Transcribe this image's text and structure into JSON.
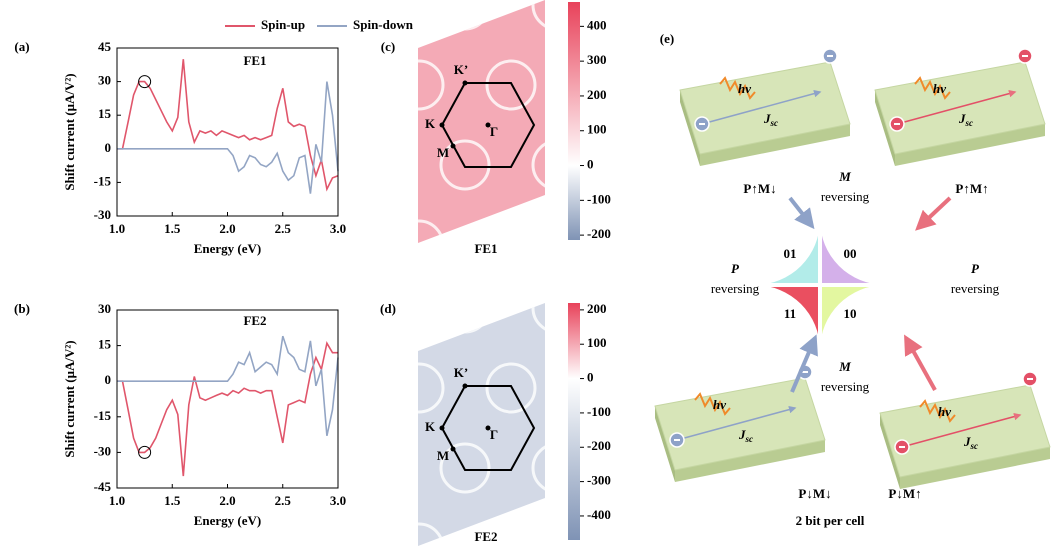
{
  "chart_data": [
    {
      "type": "line",
      "panel": "(a)",
      "title": "FE1",
      "xlabel": "Energy (eV)",
      "ylabel": "Shift current  (μA/V²)",
      "x": [
        1.0,
        1.05,
        1.1,
        1.15,
        1.2,
        1.25,
        1.3,
        1.35,
        1.4,
        1.45,
        1.5,
        1.55,
        1.6,
        1.65,
        1.7,
        1.75,
        1.8,
        1.85,
        1.9,
        1.95,
        2.0,
        2.05,
        2.1,
        2.15,
        2.2,
        2.25,
        2.3,
        2.35,
        2.4,
        2.45,
        2.5,
        2.55,
        2.6,
        2.65,
        2.7,
        2.75,
        2.8,
        2.85,
        2.9,
        2.95,
        3.0
      ],
      "xlim": [
        1,
        3
      ],
      "xticks": [
        {
          "value": 1,
          "label": "1.0"
        },
        1.5,
        {
          "value": 2,
          "label": "2.0"
        },
        2.5,
        {
          "value": 3,
          "label": "3.0"
        }
      ],
      "ylim": [
        -30,
        45
      ],
      "yticks": [
        -30,
        -15,
        0,
        15,
        30,
        45
      ],
      "legend": true,
      "series": [
        {
          "name": "Spin-up",
          "color": "#e0566b",
          "values": [
            0,
            0,
            12,
            24,
            30,
            30,
            27,
            22,
            17,
            12,
            8,
            14,
            40,
            12,
            3,
            8,
            7,
            8,
            6,
            8,
            7,
            6,
            5,
            6,
            4,
            5,
            4,
            5,
            6,
            18,
            27,
            12,
            10,
            11,
            10,
            -3,
            -12,
            -5,
            -18,
            -13,
            -12
          ]
        },
        {
          "name": "Spin-down",
          "color": "#93a5c4",
          "values": [
            0,
            0,
            0,
            0,
            0,
            0,
            0,
            0,
            0,
            0,
            0,
            0,
            0,
            0,
            0,
            0,
            0,
            0,
            0,
            0,
            0,
            -3,
            -10,
            -8,
            -3,
            -4,
            -7,
            -8,
            -6,
            -2,
            -10,
            -14,
            -12,
            -4,
            -3,
            -20,
            2,
            -6,
            30,
            15,
            -10
          ]
        }
      ],
      "highlight": {
        "x": 1.25,
        "y": 30
      }
    },
    {
      "type": "line",
      "panel": "(b)",
      "title": "FE2",
      "xlabel": "Energy (eV)",
      "ylabel": "Shift current  (μA/V²)",
      "x": [
        1.0,
        1.05,
        1.1,
        1.15,
        1.2,
        1.25,
        1.3,
        1.35,
        1.4,
        1.45,
        1.5,
        1.55,
        1.6,
        1.65,
        1.7,
        1.75,
        1.8,
        1.85,
        1.9,
        1.95,
        2.0,
        2.05,
        2.1,
        2.15,
        2.2,
        2.25,
        2.3,
        2.35,
        2.4,
        2.45,
        2.5,
        2.55,
        2.6,
        2.65,
        2.7,
        2.75,
        2.8,
        2.85,
        2.9,
        2.95,
        3.0
      ],
      "xlim": [
        1,
        3
      ],
      "xticks": [
        {
          "value": 1,
          "label": "1.0"
        },
        1.5,
        {
          "value": 2,
          "label": "2.0"
        },
        2.5,
        {
          "value": 3,
          "label": "3.0"
        }
      ],
      "ylim": [
        -45,
        30
      ],
      "yticks": [
        -45,
        -30,
        -15,
        0,
        15,
        30
      ],
      "legend": false,
      "series": [
        {
          "color": "#e0566b",
          "values": [
            0,
            0,
            -12,
            -24,
            -30,
            -30,
            -28,
            -24,
            -18,
            -12,
            -8,
            -14,
            -40,
            -10,
            2,
            -7,
            -8,
            -7,
            -6,
            -5,
            -6,
            -4,
            -5,
            -3,
            -4,
            -4,
            -5,
            -4,
            -4,
            -15,
            -26,
            -10,
            -9,
            -8,
            -9,
            3,
            10,
            5,
            16,
            12,
            12
          ]
        },
        {
          "color": "#93a5c4",
          "values": [
            0,
            0,
            0,
            0,
            0,
            0,
            0,
            0,
            0,
            0,
            0,
            0,
            0,
            0,
            0,
            0,
            0,
            0,
            0,
            0,
            0,
            3,
            8,
            7,
            12,
            4,
            6,
            8,
            7,
            3,
            19,
            12,
            10,
            5,
            4,
            17,
            -2,
            5,
            -23,
            -12,
            10
          ]
        }
      ],
      "highlight": {
        "x": 1.25,
        "y": -30
      }
    },
    {
      "type": "heatmap",
      "panel": "(c)",
      "title": "FE1",
      "background": "#f4aab6",
      "points": [
        "K’",
        "K",
        "M",
        "Γ"
      ],
      "colorbar": {
        "lim": [
          -214,
          470
        ],
        "ticks": [
          -200,
          -100,
          0,
          100,
          200,
          300,
          400
        ],
        "colors": [
          "#7f93b5",
          "#ffffff",
          "#e8425a"
        ]
      }
    },
    {
      "type": "heatmap",
      "panel": "(d)",
      "title": "FE2",
      "background": "#d3d9e6",
      "points": [
        "K’",
        "K",
        "M",
        "Γ"
      ],
      "colorbar": {
        "lim": [
          -470,
          220
        ],
        "ticks": [
          -400,
          -300,
          -200,
          -100,
          0,
          100,
          200
        ],
        "colors": [
          "#7f93b5",
          "#ffffff",
          "#e8425a"
        ]
      }
    }
  ],
  "diagram": {
    "panel": "(e)",
    "quadrants": [
      "01",
      "00",
      "11",
      "10"
    ],
    "cards": [
      {
        "photon": "hv",
        "current": "J",
        "current_sub": "sc",
        "state": "P↑M↓"
      },
      {
        "photon": "hv",
        "current": "J",
        "current_sub": "sc",
        "state": "P↑M↑"
      },
      {
        "photon": "hv",
        "current": "J",
        "current_sub": "sc",
        "state": "P↓M↓"
      },
      {
        "photon": "hv",
        "current": "J",
        "current_sub": "sc",
        "state": "P↓M↑"
      }
    ],
    "reversals": [
      {
        "symbol": "M",
        "text": "reversing"
      },
      {
        "symbol": "P",
        "text": "reversing"
      },
      {
        "symbol": "P",
        "text": "reversing"
      },
      {
        "symbol": "M",
        "text": "reversing"
      }
    ],
    "caption": "2 bit per cell"
  }
}
